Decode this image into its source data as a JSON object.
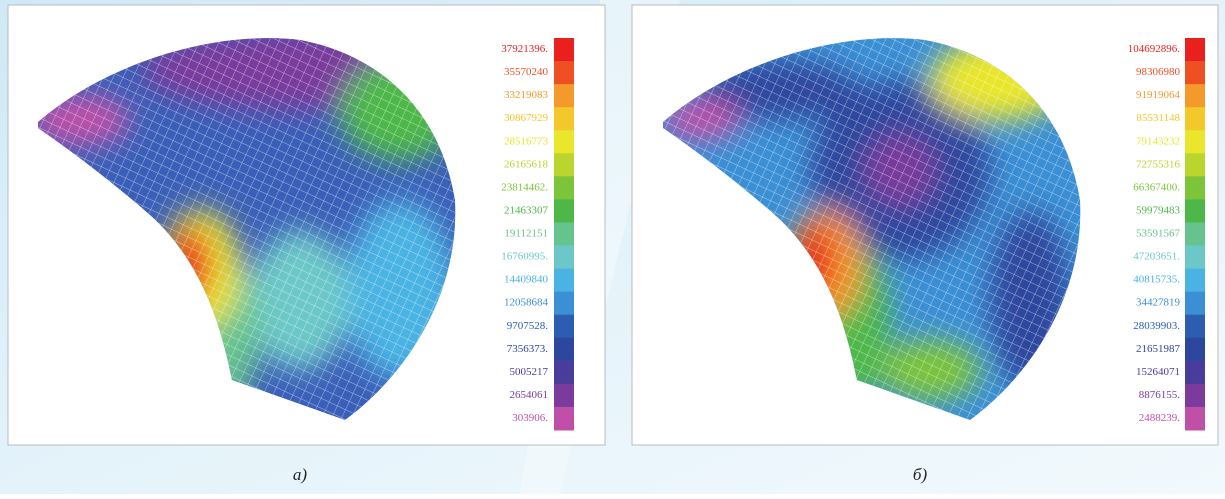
{
  "panels": [
    {
      "caption": "а)",
      "scale": [
        "37921396.",
        "35570240",
        "33219083",
        "30867929",
        "28516773",
        "26165618",
        "23814462.",
        "21463307",
        "19112151",
        "16760995.",
        "14409840",
        "12058684",
        "9707528.",
        "7356373.",
        "5005217",
        "2654061",
        "303906."
      ]
    },
    {
      "caption": "б)",
      "scale": [
        "104692896.",
        "98306980",
        "91919064",
        "85531148",
        "79143232",
        "72755316",
        "66367400.",
        "59979483",
        "53591567",
        "47203651.",
        "40815735.",
        "34427819",
        "28039903.",
        "21651987",
        "15264071",
        "8876155.",
        "2488239."
      ]
    }
  ]
}
